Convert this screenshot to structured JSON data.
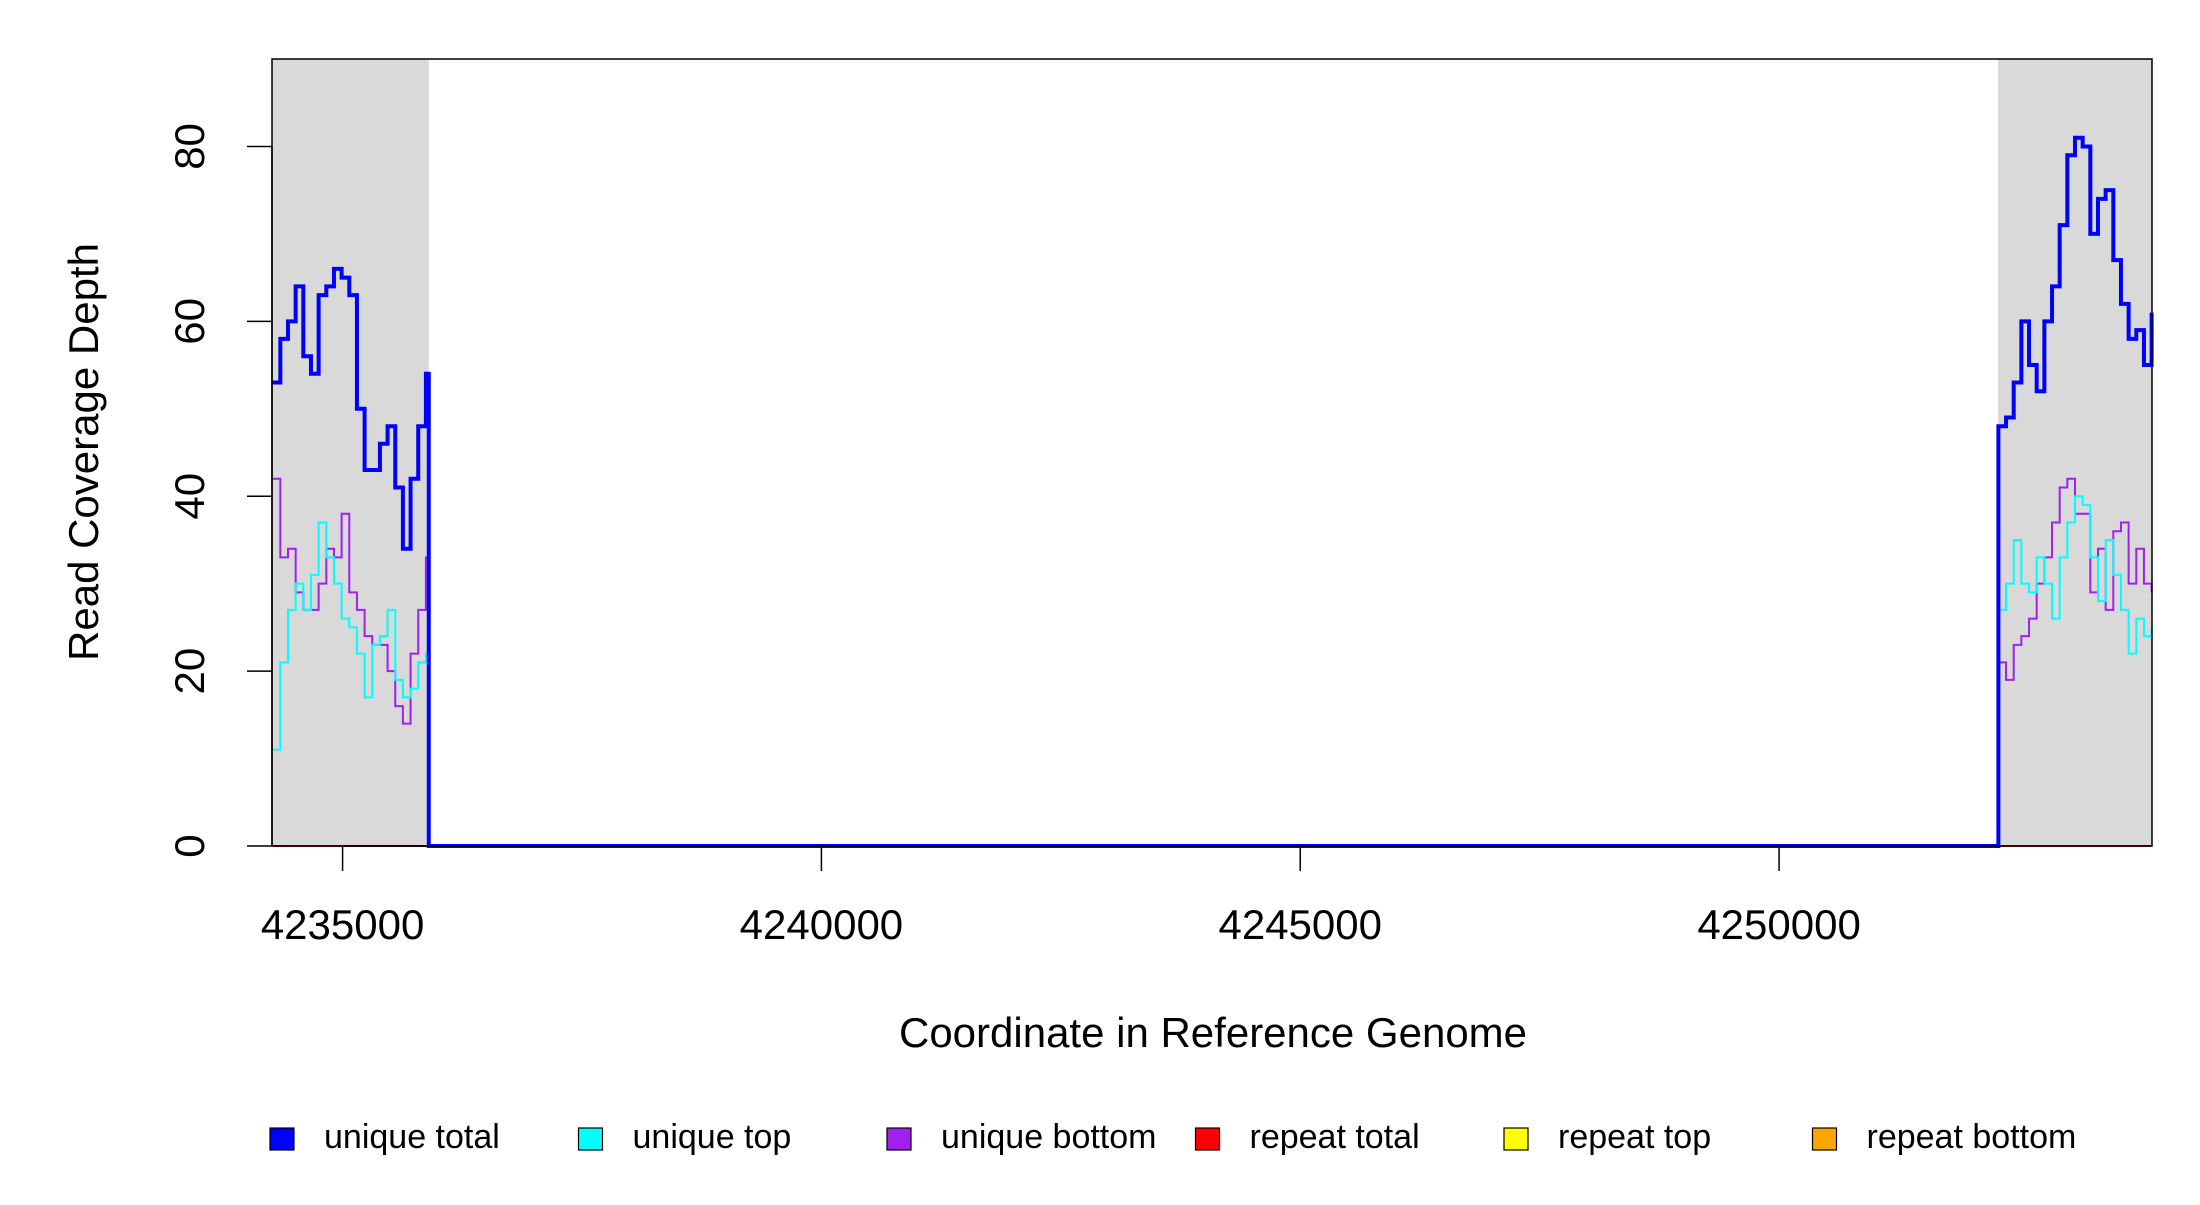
{
  "chart_data": {
    "type": "step-line",
    "x_label": "Coordinate in Reference Genome",
    "y_label": "Read Coverage Depth",
    "x": [
      4234270,
      4234350,
      4234430,
      4234510,
      4234590,
      4234670,
      4234750,
      4234830,
      4234910,
      4234990,
      4235070,
      4235150,
      4235230,
      4235310,
      4235390,
      4235470,
      4235550,
      4235630,
      4235710,
      4235790,
      4235870,
      4235900,
      4252280,
      4252290,
      4252370,
      4252450,
      4252530,
      4252610,
      4252690,
      4252770,
      4252850,
      4252930,
      4253010,
      4253090,
      4253170,
      4253250,
      4253330,
      4253410,
      4253490,
      4253570,
      4253650,
      4253730,
      4253810,
      4253890
    ],
    "series": [
      {
        "name": "unique total",
        "color": "#0000ff",
        "width": 4,
        "values": [
          53,
          58,
          60,
          64,
          56,
          54,
          63,
          64,
          66,
          65,
          63,
          50,
          43,
          43,
          46,
          48,
          41,
          34,
          42,
          48,
          54,
          0,
          0,
          48,
          49,
          53,
          60,
          55,
          52,
          60,
          64,
          71,
          79,
          81,
          80,
          70,
          74,
          75,
          67,
          62,
          58,
          59,
          55,
          61
        ]
      },
      {
        "name": "unique top",
        "color": "#00ffff",
        "width": 2,
        "values": [
          11,
          21,
          27,
          30,
          27,
          31,
          37,
          33,
          30,
          26,
          25,
          22,
          17,
          23,
          24,
          27,
          19,
          17,
          18,
          21,
          22,
          0,
          0,
          27,
          30,
          35,
          30,
          29,
          33,
          30,
          26,
          33,
          37,
          40,
          39,
          33,
          28,
          35,
          31,
          27,
          22,
          26,
          24,
          25
        ]
      },
      {
        "name": "unique bottom",
        "color": "#a020f0",
        "width": 2,
        "values": [
          42,
          33,
          34,
          29,
          27,
          27,
          30,
          34,
          33,
          38,
          29,
          27,
          24,
          23,
          23,
          20,
          16,
          14,
          22,
          27,
          33,
          0,
          0,
          21,
          19,
          23,
          24,
          26,
          30,
          33,
          37,
          41,
          42,
          38,
          38,
          29,
          34,
          27,
          36,
          37,
          30,
          34,
          30,
          29
        ]
      },
      {
        "name": "repeat total",
        "color": "#ff0000",
        "width": 2,
        "values": [
          0,
          0,
          0,
          0,
          0,
          0,
          0,
          0,
          0,
          0,
          0,
          0,
          0,
          0,
          0,
          0,
          0,
          0,
          0,
          0,
          0,
          0,
          0,
          0,
          0,
          0,
          0,
          0,
          0,
          0,
          0,
          0,
          0,
          0,
          0,
          0,
          0,
          0,
          0,
          0,
          0,
          0,
          0,
          0
        ]
      },
      {
        "name": "repeat top",
        "color": "#ffff00",
        "width": 2,
        "values": [
          0,
          0,
          0,
          0,
          0,
          0,
          0,
          0,
          0,
          0,
          0,
          0,
          0,
          0,
          0,
          0,
          0,
          0,
          0,
          0,
          0,
          0,
          0,
          0,
          0,
          0,
          0,
          0,
          0,
          0,
          0,
          0,
          0,
          0,
          0,
          0,
          0,
          0,
          0,
          0,
          0,
          0,
          0,
          0
        ]
      },
      {
        "name": "repeat bottom",
        "color": "#ffa500",
        "width": 2,
        "values": [
          0,
          0,
          0,
          0,
          0,
          0,
          0,
          0,
          0,
          0,
          0,
          0,
          0,
          0,
          0,
          0,
          0,
          0,
          0,
          0,
          0,
          0,
          0,
          0,
          0,
          0,
          0,
          0,
          0,
          0,
          0,
          0,
          0,
          0,
          0,
          0,
          0,
          0,
          0,
          0,
          0,
          0,
          0,
          0
        ]
      }
    ],
    "shaded_ranges": [
      [
        4234263,
        4235900
      ],
      [
        4252286,
        4253894
      ]
    ],
    "shade_color": "#d9d9d9",
    "xlim": [
      4234263,
      4253894
    ],
    "ylim": [
      0,
      90
    ],
    "xticks": [
      4235000,
      4240000,
      4245000,
      4250000
    ],
    "yticks": [
      0,
      20,
      40,
      60,
      80
    ]
  }
}
